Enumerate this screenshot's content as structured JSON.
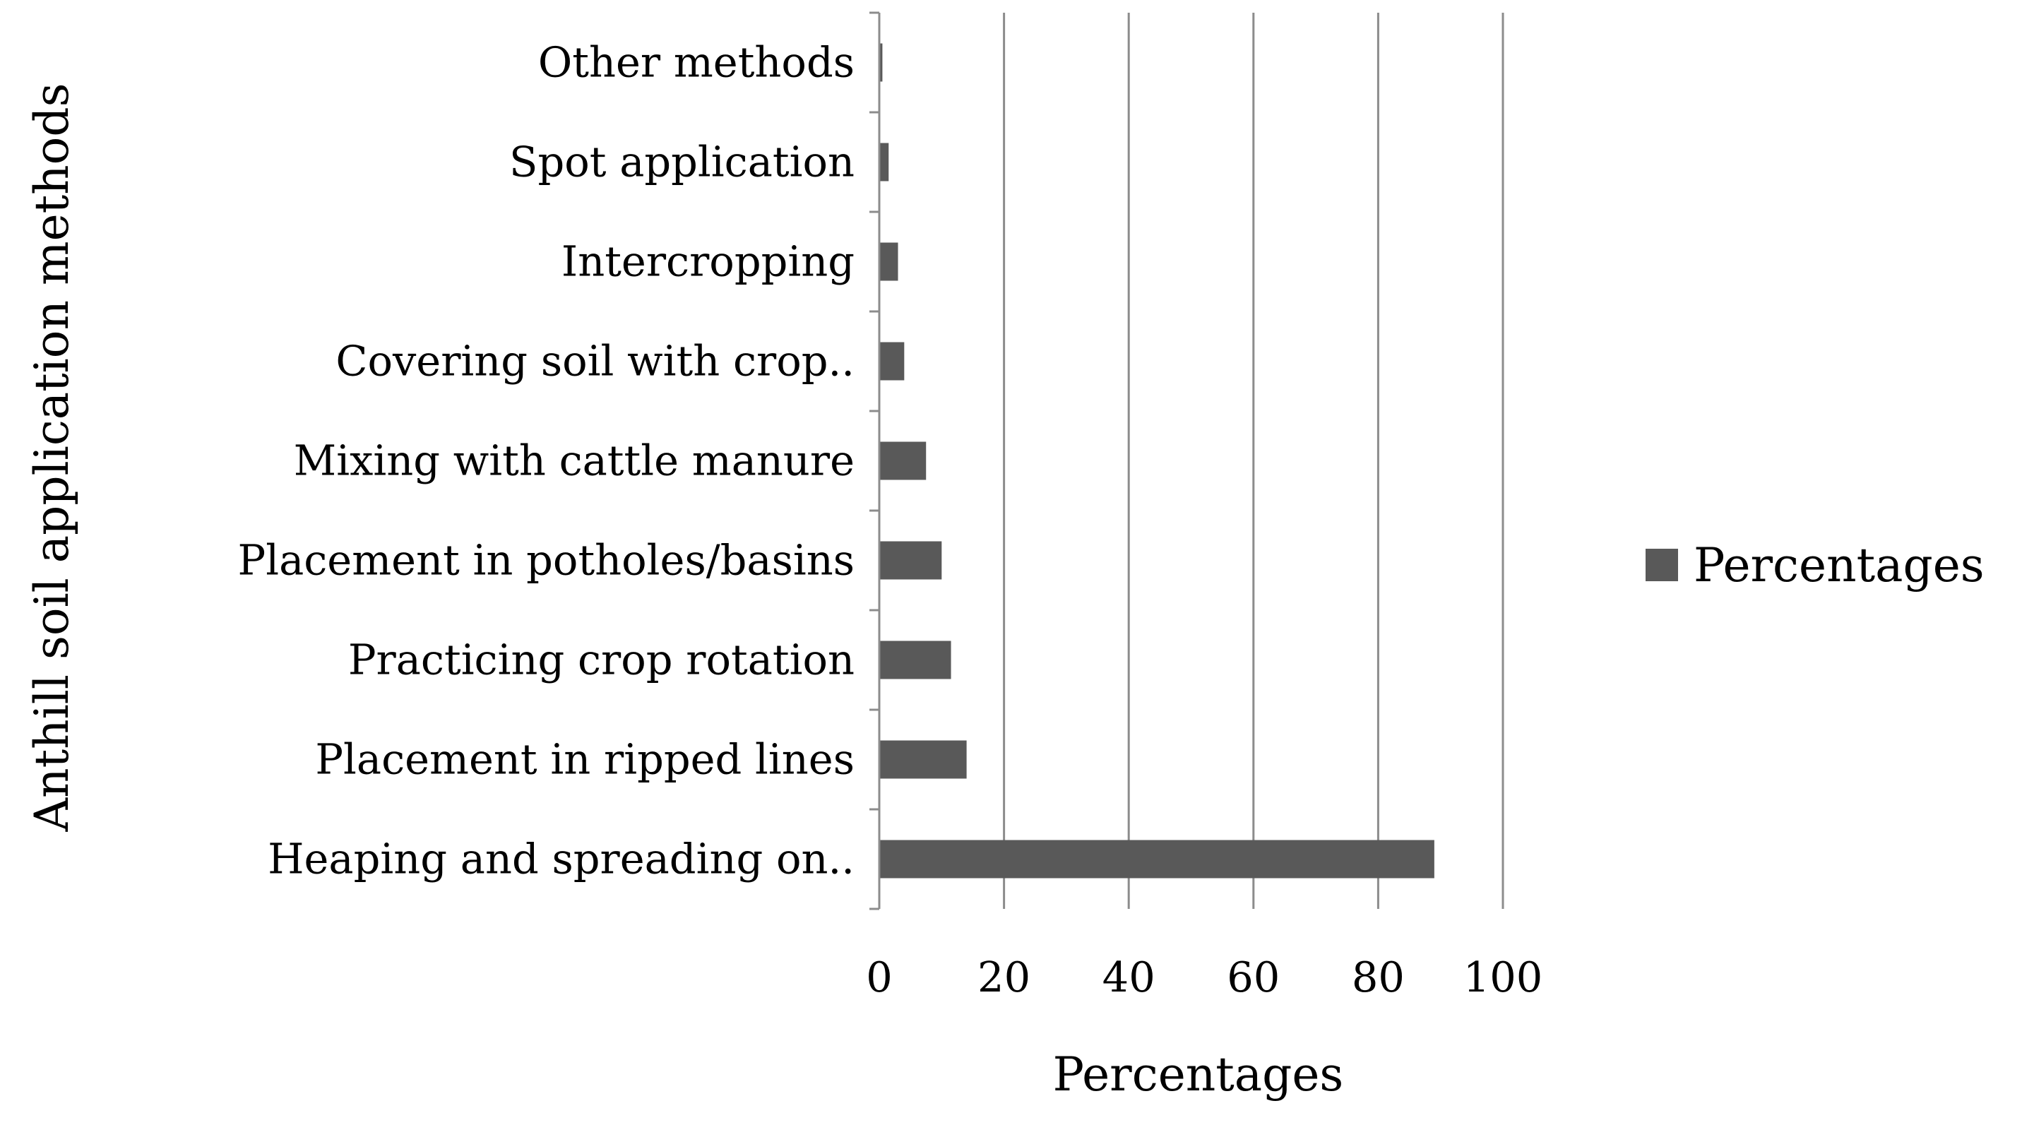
{
  "chart_data": {
    "type": "bar",
    "orientation": "horizontal",
    "title": "",
    "xlabel": "Percentages",
    "ylabel": "Anthill soil application methods",
    "categories": [
      "Heaping and spreading on..",
      "Placement in ripped lines",
      "Practicing crop rotation",
      "Placement in potholes/basins",
      "Mixing with cattle manure",
      "Covering soil with crop..",
      "Intercropping",
      "Spot application",
      "Other methods"
    ],
    "series": [
      {
        "name": "Percentages",
        "values": [
          89,
          14,
          11.5,
          10,
          7.5,
          4,
          3,
          1.5,
          0.5
        ],
        "color": "#595959"
      }
    ],
    "xlim": [
      0,
      100
    ],
    "xticks": [
      "0",
      "20",
      "40",
      "60",
      "80",
      "100"
    ],
    "grid": "vertical",
    "legend": "right"
  }
}
